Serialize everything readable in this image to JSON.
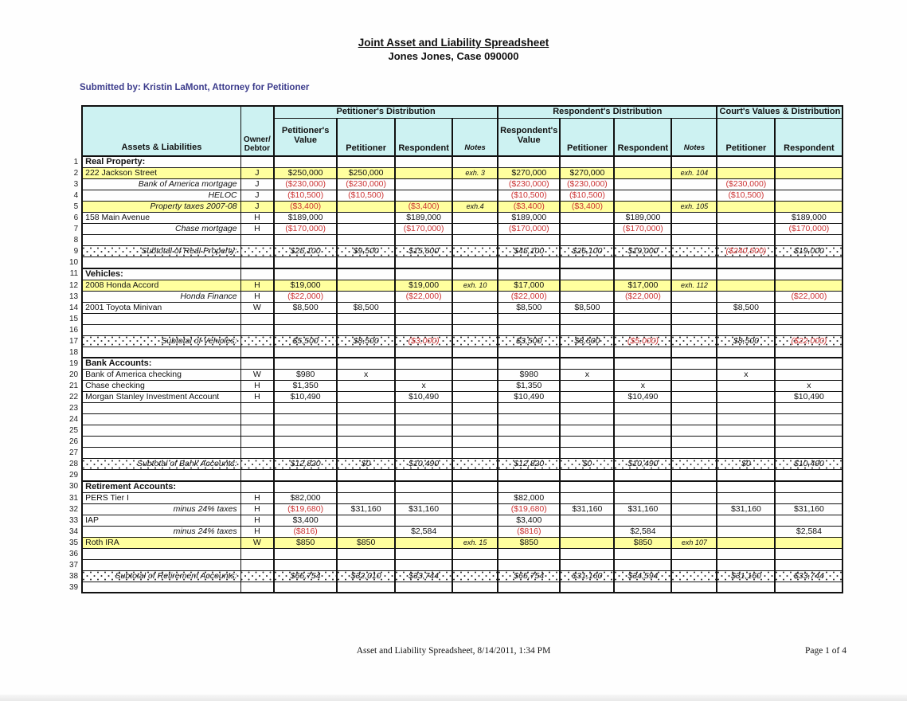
{
  "page": {
    "title": "Joint Asset and Liability Spreadsheet",
    "subtitle": "Jones Jones, Case 090000",
    "submitted_by": "Submitted by: Kristin LaMont, Attorney for Petitioner",
    "footer_left": "Asset and Liability Spreadsheet, 8/14/2011, 1:34 PM",
    "footer_right": "Page 1 of 4"
  },
  "colors": {
    "header_fill": "#cdf2f2",
    "highlight_fill": "#ffff9e",
    "negative_text": "#cc3333",
    "submitted_by_text": "#3c3c8c"
  },
  "table": {
    "header": {
      "assets_label": "Assets & Liabilities",
      "owner_label": "Owner/Debtor",
      "groups": [
        {
          "label": "Petitioner's Distribution"
        },
        {
          "label": "Respondent's Distribution"
        },
        {
          "label": "Court's Values & Distribution"
        }
      ],
      "columns": [
        "Petitioner's Value",
        "Petitioner",
        "Respondent",
        "Notes",
        "Respondent's Value",
        "Petitioner",
        "Respondent",
        "Notes",
        "Petitioner",
        "Respondent"
      ]
    },
    "rows": [
      {
        "num": 1,
        "type": "section",
        "label": "Real Property:",
        "owner": "",
        "highlight": false,
        "thick_top": true,
        "cells": [
          "",
          "",
          "",
          "",
          "",
          "",
          "",
          "",
          "",
          ""
        ]
      },
      {
        "num": 2,
        "type": "item",
        "label": "222 Jackson Street",
        "owner": "J",
        "highlight": true,
        "thick_top": false,
        "cells": [
          "$250,000",
          "$250,000",
          "",
          "exh. 3",
          "$270,000",
          "$270,000",
          "",
          "exh. 104",
          "",
          ""
        ]
      },
      {
        "num": 3,
        "type": "sub",
        "label": "Bank of America mortgage",
        "owner": "J",
        "highlight": false,
        "thick_top": false,
        "cells": [
          "($230,000)",
          "($230,000)",
          "",
          "",
          "($230,000)",
          "($230,000)",
          "",
          "",
          "($230,000)",
          ""
        ]
      },
      {
        "num": 4,
        "type": "sub",
        "label": "HELOC",
        "owner": "J",
        "highlight": false,
        "thick_top": false,
        "cells": [
          "($10,500)",
          "($10,500)",
          "",
          "",
          "($10,500)",
          "($10,500)",
          "",
          "",
          "($10,500)",
          ""
        ]
      },
      {
        "num": 5,
        "type": "sub",
        "label": "Property taxes 2007-08",
        "owner": "J",
        "highlight": true,
        "thick_top": false,
        "cells": [
          "($3,400)",
          "",
          "($3,400)",
          "exh.4",
          "($3,400)",
          "($3,400)",
          "",
          "exh. 105",
          "",
          ""
        ]
      },
      {
        "num": 6,
        "type": "item",
        "label": "158 Main Avenue",
        "owner": "H",
        "highlight": false,
        "thick_top": false,
        "cells": [
          "$189,000",
          "",
          "$189,000",
          "",
          "$189,000",
          "",
          "$189,000",
          "",
          "",
          "$189,000"
        ]
      },
      {
        "num": 7,
        "type": "sub",
        "label": "Chase mortgage",
        "owner": "H",
        "highlight": false,
        "thick_top": false,
        "cells": [
          "($170,000)",
          "",
          "($170,000)",
          "",
          "($170,000)",
          "",
          "($170,000)",
          "",
          "",
          "($170,000)"
        ]
      },
      {
        "num": 8,
        "type": "empty",
        "label": "",
        "owner": "",
        "highlight": false,
        "thick_top": false,
        "cells": [
          "",
          "",
          "",
          "",
          "",
          "",
          "",
          "",
          "",
          ""
        ]
      },
      {
        "num": 9,
        "type": "subtotal",
        "label": "Subtotal of Real Property:",
        "owner": "",
        "highlight": false,
        "thick_top": false,
        "cells": [
          "$25,100",
          "$9,500",
          "$15,600",
          "",
          "$45,100",
          "$26,100",
          "$19,000",
          "",
          "($240,500)",
          "$19,000"
        ]
      },
      {
        "num": 10,
        "type": "empty",
        "label": "",
        "owner": "",
        "highlight": false,
        "thick_top": false,
        "cells": [
          "",
          "",
          "",
          "",
          "",
          "",
          "",
          "",
          "",
          ""
        ]
      },
      {
        "num": 11,
        "type": "section",
        "label": "Vehicles:",
        "owner": "",
        "highlight": false,
        "thick_top": true,
        "cells": [
          "",
          "",
          "",
          "",
          "",
          "",
          "",
          "",
          "",
          ""
        ]
      },
      {
        "num": 12,
        "type": "item",
        "label": "2008 Honda Accord",
        "owner": "H",
        "highlight": true,
        "thick_top": false,
        "cells": [
          "$19,000",
          "",
          "$19,000",
          "exh. 10",
          "$17,000",
          "",
          "$17,000",
          "exh. 112",
          "",
          ""
        ]
      },
      {
        "num": 13,
        "type": "sub",
        "label": "Honda Finance",
        "owner": "H",
        "highlight": false,
        "thick_top": false,
        "cells": [
          "($22,000)",
          "",
          "($22,000)",
          "",
          "($22,000)",
          "",
          "($22,000)",
          "",
          "",
          "($22,000)"
        ]
      },
      {
        "num": 14,
        "type": "item",
        "label": "2001 Toyota Minivan",
        "owner": "W",
        "highlight": false,
        "thick_top": false,
        "cells": [
          "$8,500",
          "$8,500",
          "",
          "",
          "$8,500",
          "$8,500",
          "",
          "",
          "$8,500",
          ""
        ]
      },
      {
        "num": 15,
        "type": "empty",
        "label": "",
        "owner": "",
        "highlight": false,
        "thick_top": false,
        "cells": [
          "",
          "",
          "",
          "",
          "",
          "",
          "",
          "",
          "",
          ""
        ]
      },
      {
        "num": 16,
        "type": "empty",
        "label": "",
        "owner": "",
        "highlight": false,
        "thick_top": false,
        "cells": [
          "",
          "",
          "",
          "",
          "",
          "",
          "",
          "",
          "",
          ""
        ]
      },
      {
        "num": 17,
        "type": "subtotal",
        "label": "Subtotal of Vehicles:",
        "owner": "",
        "highlight": false,
        "thick_top": false,
        "cells": [
          "$5,500",
          "$8,500",
          "($3,000)",
          "",
          "$3,500",
          "$8,500",
          "($5,000)",
          "",
          "$8,500",
          "($22,000)"
        ]
      },
      {
        "num": 18,
        "type": "empty",
        "label": "",
        "owner": "",
        "highlight": false,
        "thick_top": false,
        "cells": [
          "",
          "",
          "",
          "",
          "",
          "",
          "",
          "",
          "",
          ""
        ]
      },
      {
        "num": 19,
        "type": "section",
        "label": "Bank Accounts:",
        "owner": "",
        "highlight": false,
        "thick_top": true,
        "cells": [
          "",
          "",
          "",
          "",
          "",
          "",
          "",
          "",
          "",
          ""
        ]
      },
      {
        "num": 20,
        "type": "item",
        "label": "Bank of America checking",
        "owner": "W",
        "highlight": false,
        "thick_top": false,
        "cells": [
          "$980",
          "x",
          "",
          "",
          "$980",
          "x",
          "",
          "",
          "x",
          ""
        ]
      },
      {
        "num": 21,
        "type": "item",
        "label": "Chase checking",
        "owner": "H",
        "highlight": false,
        "thick_top": false,
        "cells": [
          "$1,350",
          "",
          "x",
          "",
          "$1,350",
          "",
          "x",
          "",
          "",
          "x"
        ]
      },
      {
        "num": 22,
        "type": "item",
        "label": "Morgan Stanley Investment Account",
        "owner": "H",
        "highlight": false,
        "thick_top": false,
        "cells": [
          "$10,490",
          "",
          "$10,490",
          "",
          "$10,490",
          "",
          "$10,490",
          "",
          "",
          "$10,490"
        ]
      },
      {
        "num": 23,
        "type": "empty",
        "label": "",
        "owner": "",
        "highlight": false,
        "thick_top": false,
        "cells": [
          "",
          "",
          "",
          "",
          "",
          "",
          "",
          "",
          "",
          ""
        ]
      },
      {
        "num": 24,
        "type": "empty",
        "label": "",
        "owner": "",
        "highlight": false,
        "thick_top": false,
        "cells": [
          "",
          "",
          "",
          "",
          "",
          "",
          "",
          "",
          "",
          ""
        ]
      },
      {
        "num": 25,
        "type": "empty",
        "label": "",
        "owner": "",
        "highlight": false,
        "thick_top": false,
        "cells": [
          "",
          "",
          "",
          "",
          "",
          "",
          "",
          "",
          "",
          ""
        ]
      },
      {
        "num": 26,
        "type": "empty",
        "label": "",
        "owner": "",
        "highlight": false,
        "thick_top": false,
        "cells": [
          "",
          "",
          "",
          "",
          "",
          "",
          "",
          "",
          "",
          ""
        ]
      },
      {
        "num": 27,
        "type": "empty",
        "label": "",
        "owner": "",
        "highlight": false,
        "thick_top": false,
        "cells": [
          "",
          "",
          "",
          "",
          "",
          "",
          "",
          "",
          "",
          ""
        ]
      },
      {
        "num": 28,
        "type": "subtotal",
        "label": "Subtotal of Bank Accounts:",
        "owner": "",
        "highlight": false,
        "thick_top": false,
        "cells": [
          "$12,820",
          "$0",
          "$10,490",
          "",
          "$12,820",
          "$0",
          "$10,490",
          "",
          "$0",
          "$10,490"
        ]
      },
      {
        "num": 29,
        "type": "empty",
        "label": "",
        "owner": "",
        "highlight": false,
        "thick_top": false,
        "cells": [
          "",
          "",
          "",
          "",
          "",
          "",
          "",
          "",
          "",
          ""
        ]
      },
      {
        "num": 30,
        "type": "section",
        "label": "Retirement Accounts:",
        "owner": "",
        "highlight": false,
        "thick_top": true,
        "cells": [
          "",
          "",
          "",
          "",
          "",
          "",
          "",
          "",
          "",
          ""
        ]
      },
      {
        "num": 31,
        "type": "item",
        "label": "PERS Tier I",
        "owner": "H",
        "highlight": false,
        "thick_top": false,
        "cells": [
          "$82,000",
          "",
          "",
          "",
          "$82,000",
          "",
          "",
          "",
          "",
          ""
        ]
      },
      {
        "num": 32,
        "type": "sub",
        "label": "minus 24% taxes",
        "owner": "H",
        "highlight": false,
        "thick_top": false,
        "cells": [
          "($19,680)",
          "$31,160",
          "$31,160",
          "",
          "($19,680)",
          "$31,160",
          "$31,160",
          "",
          "$31,160",
          "$31,160"
        ]
      },
      {
        "num": 33,
        "type": "item",
        "label": "IAP",
        "owner": "H",
        "highlight": false,
        "thick_top": false,
        "cells": [
          "$3,400",
          "",
          "",
          "",
          "$3,400",
          "",
          "",
          "",
          "",
          ""
        ]
      },
      {
        "num": 34,
        "type": "sub",
        "label": "minus 24% taxes",
        "owner": "H",
        "highlight": false,
        "thick_top": false,
        "cells": [
          "($816)",
          "",
          "$2,584",
          "",
          "($816)",
          "",
          "$2,584",
          "",
          "",
          "$2,584"
        ]
      },
      {
        "num": 35,
        "type": "item",
        "label": "Roth IRA",
        "owner": "W",
        "highlight": true,
        "thick_top": false,
        "cells": [
          "$850",
          "$850",
          "",
          "exh. 15",
          "$850",
          "",
          "$850",
          "exh 107",
          "",
          ""
        ]
      },
      {
        "num": 36,
        "type": "empty",
        "label": "",
        "owner": "",
        "highlight": false,
        "thick_top": false,
        "cells": [
          "",
          "",
          "",
          "",
          "",
          "",
          "",
          "",
          "",
          ""
        ]
      },
      {
        "num": 37,
        "type": "empty",
        "label": "",
        "owner": "",
        "highlight": false,
        "thick_top": false,
        "cells": [
          "",
          "",
          "",
          "",
          "",
          "",
          "",
          "",
          "",
          ""
        ]
      },
      {
        "num": 38,
        "type": "subtotal",
        "label": "Subtotal of Retirement Accounts:",
        "owner": "",
        "highlight": false,
        "thick_top": false,
        "cells": [
          "$65,754",
          "$32,010",
          "$33,744",
          "",
          "$65,754",
          "$31,160",
          "$34,594",
          "",
          "$31,160",
          "$33,744"
        ]
      },
      {
        "num": 39,
        "type": "empty",
        "label": "",
        "owner": "",
        "highlight": false,
        "thick_top": false,
        "cells": [
          "",
          "",
          "",
          "",
          "",
          "",
          "",
          "",
          "",
          ""
        ]
      }
    ]
  }
}
